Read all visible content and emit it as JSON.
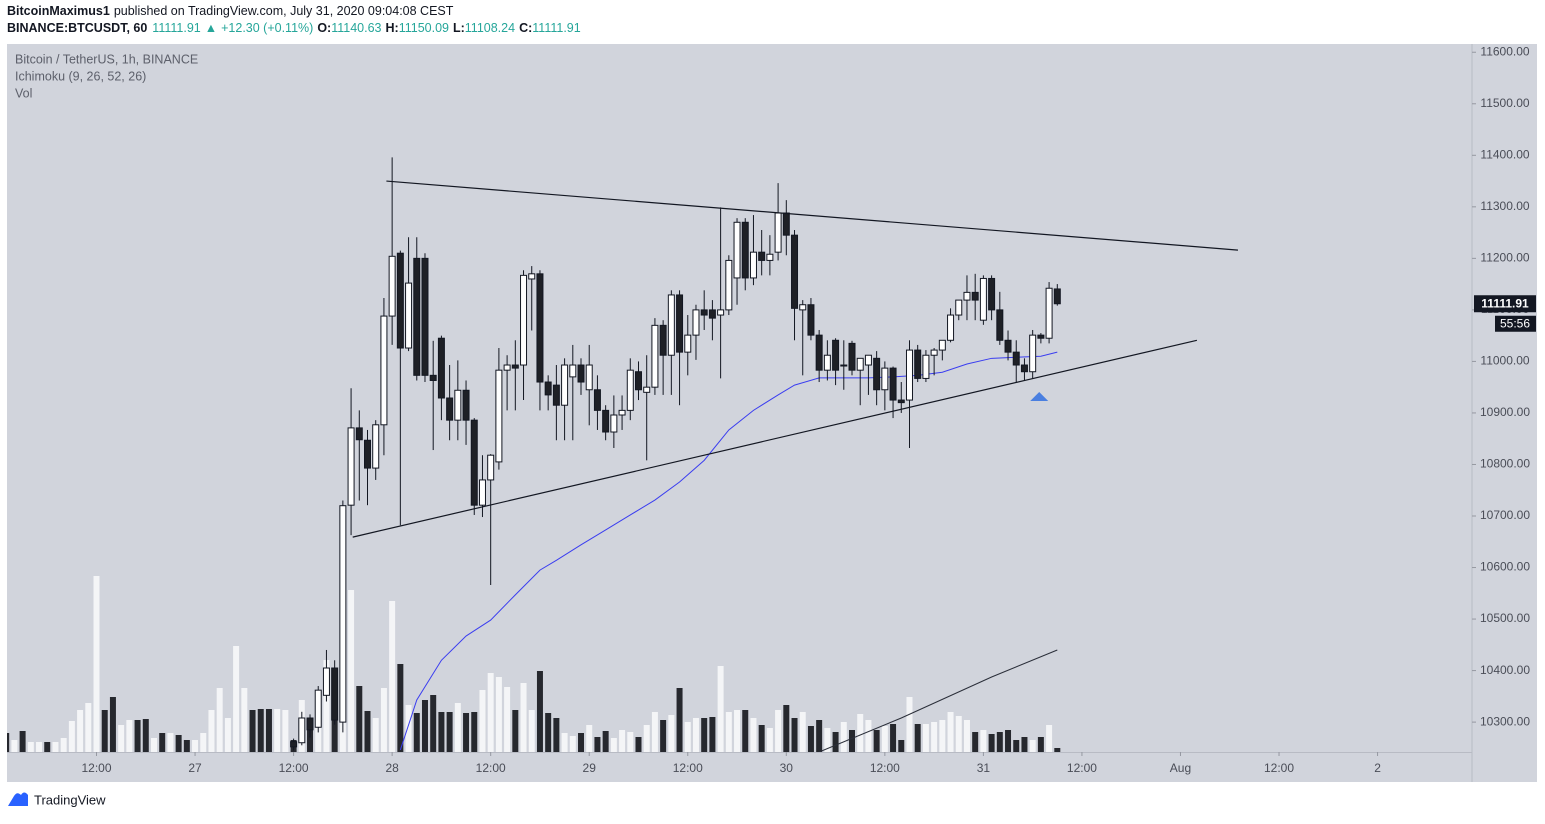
{
  "header": {
    "author": "BitcoinMaximus1",
    "published": "published on TradingView.com, July 31, 2020 09:04:08 CEST",
    "symbol": "BINANCE:BTCUSDT, 60",
    "arrow": "▲",
    "change": "+12.30 (+0.11%)",
    "o": "O:",
    "h": "H:",
    "l": "L:",
    "c": "C:"
  },
  "chart_data": {
    "type": "candlestick",
    "title": "Bitcoin / TetherUS, 1h, BINANCE",
    "indicators": [
      "Ichimoku (9, 26, 52, 26)",
      "Vol"
    ],
    "countdown": "55:56",
    "up_color": "#ffffff",
    "down_color": "#1e2026",
    "open": [
      null,
      null,
      null,
      null,
      null,
      null,
      null,
      null,
      null,
      null,
      null,
      null,
      null,
      null,
      null,
      null,
      null,
      null,
      null,
      null,
      null,
      null,
      null,
      null,
      null,
      null,
      null,
      null,
      null,
      null,
      null,
      null,
      null,
      null,
      null,
      10262,
      10260,
      10308,
      10290,
      10352,
      10405,
      10300,
      10721,
      10871,
      10847,
      10793,
      10877,
      11088,
      11210,
      11026,
      11200,
      11200,
      10973,
      11045,
      10929,
      10886,
      10944,
      10886,
      10721,
      10770,
      10805,
      10983,
      10993,
      10993,
      11160,
      11170,
      10960,
      10954,
      10915,
      10970,
      10993,
      10945,
      10945,
      10905,
      10863,
      10896,
      10905,
      10980,
      10940,
      10950,
      11070,
      11012,
      11129,
      11018,
      11051,
      11100,
      11100,
      11090,
      11100,
      11162,
      11270,
      11162,
      11212,
      11196,
      11212,
      11288,
      11245,
      11100,
      11110,
      11051,
      10983,
      11041,
      10993,
      11035,
      10983,
      10993,
      11006,
      10945,
      10987,
      10925,
      10925,
      11022,
      10967,
      11012,
      11022,
      11041,
      11090,
      11119,
      11134,
      11080,
      11161,
      11100,
      11041,
      11018,
      10993,
      10980,
      11051,
      11045,
      11140.63
    ],
    "high": [
      null,
      null,
      null,
      null,
      null,
      null,
      null,
      null,
      null,
      null,
      null,
      null,
      null,
      null,
      null,
      null,
      null,
      null,
      null,
      null,
      null,
      null,
      null,
      null,
      null,
      null,
      null,
      null,
      null,
      null,
      null,
      null,
      null,
      null,
      null,
      10268,
      10320,
      10315,
      10370,
      10440,
      10420,
      10730,
      10948,
      10905,
      10867,
      10886,
      11123,
      11396,
      11215,
      11241,
      11241,
      11210,
      11040,
      11050,
      10993,
      11002,
      10963,
      10890,
      10818,
      10820,
      11026,
      11012,
      11041,
      11177,
      11185,
      11177,
      10973,
      10993,
      11006,
      11032,
      11006,
      11032,
      10973,
      10915,
      10934,
      10934,
      11006,
      11000,
      11012,
      11084,
      11080,
      11138,
      11138,
      11090,
      11110,
      11138,
      11119,
      11299,
      11206,
      11278,
      11278,
      11284,
      11255,
      11245,
      11346,
      11313,
      11255,
      11119,
      11123,
      11061,
      11041,
      11045,
      11041,
      11040,
      11006,
      11012,
      11020,
      11000,
      10990,
      10960,
      11041,
      11032,
      11022,
      11026,
      11041,
      11103,
      11119,
      11167,
      11170,
      11167,
      11167,
      11135,
      11060,
      11041,
      11006,
      11061,
      11055,
      11154,
      11150.09
    ],
    "low": [
      null,
      null,
      null,
      null,
      null,
      null,
      null,
      null,
      null,
      null,
      null,
      null,
      null,
      null,
      null,
      null,
      null,
      null,
      null,
      null,
      null,
      null,
      null,
      null,
      null,
      null,
      null,
      null,
      null,
      null,
      null,
      null,
      null,
      null,
      null,
      10245,
      10255,
      10270,
      10280,
      10340,
      10295,
      10280,
      10663,
      10730,
      10721,
      10770,
      10818,
      11032,
      10682,
      11020,
      10963,
      10960,
      10828,
      10886,
      10847,
      10847,
      10838,
      10702,
      10698,
      10566,
      10790,
      10905,
      10905,
      10925,
      11060,
      10905,
      10905,
      10847,
      10847,
      10847,
      10935,
      10876,
      10867,
      10847,
      10832,
      10867,
      10886,
      10925,
      10808,
      10935,
      10935,
      10935,
      10915,
      10973,
      11003,
      11061,
      11041,
      10967,
      11090,
      11110,
      11138,
      11148,
      11167,
      11167,
      11196,
      11206,
      11041,
      10973,
      11041,
      10960,
      10963,
      10954,
      10945,
      10973,
      10915,
      10935,
      10915,
      10905,
      10890,
      10900,
      10832,
      10960,
      10960,
      10973,
      11002,
      11037,
      11080,
      11080,
      11080,
      11071,
      11080,
      11032,
      11002,
      10960,
      10963,
      10967,
      11035,
      11035,
      11108.24
    ],
    "close": [
      null,
      null,
      null,
      null,
      null,
      null,
      null,
      null,
      null,
      null,
      null,
      null,
      null,
      null,
      null,
      null,
      null,
      null,
      null,
      null,
      null,
      null,
      null,
      null,
      null,
      null,
      null,
      null,
      null,
      null,
      null,
      null,
      null,
      null,
      null,
      10252,
      10308,
      10285,
      10362,
      10405,
      10304,
      10720,
      10871,
      10848,
      10793,
      10877,
      11088,
      11204,
      11026,
      11152,
      10973,
      10973,
      10963,
      10929,
      10886,
      10944,
      10886,
      10721,
      10770,
      10818,
      10983,
      10993,
      10987,
      11167,
      11170,
      10960,
      10935,
      10915,
      10993,
      10993,
      10960,
      10993,
      10905,
      10863,
      10896,
      10905,
      10983,
      10945,
      10950,
      11070,
      11012,
      11129,
      11018,
      11051,
      11100,
      11090,
      11084,
      11100,
      11196,
      11270,
      11162,
      11212,
      11196,
      11208,
      11288,
      11245,
      11103,
      11110,
      11051,
      10983,
      11012,
      10983,
      10993,
      10983,
      11006,
      11012,
      10945,
      10987,
      10925,
      10920,
      11022,
      10967,
      11012,
      11022,
      11041,
      11090,
      11119,
      11134,
      11119,
      11161,
      11100,
      11041,
      11018,
      10993,
      10980,
      11051,
      11045,
      11142,
      11111.91
    ],
    "volume": {
      "vlim": [
        0,
        200
      ],
      "up_color": "#f4f5f7",
      "down_color": "#26282e",
      "values": [
        19,
        12,
        21,
        10,
        10,
        10,
        10,
        14,
        31,
        42,
        49,
        176,
        42,
        55,
        27,
        32,
        32,
        33,
        14,
        19,
        19,
        17,
        12,
        12,
        19,
        42,
        64,
        34,
        106,
        64,
        42,
        43,
        43,
        43,
        42,
        12,
        52,
        34,
        62,
        92,
        64,
        132,
        162,
        66,
        41,
        34,
        64,
        151,
        88,
        47,
        39,
        52,
        57,
        40,
        40,
        49,
        39,
        40,
        62,
        79,
        75,
        65,
        42,
        69,
        42,
        81,
        39,
        34,
        19,
        16,
        19,
        27,
        15,
        21,
        14,
        22,
        20,
        15,
        27,
        40,
        32,
        37,
        64,
        30,
        34,
        34,
        35,
        86,
        40,
        42,
        42,
        34,
        27,
        24,
        42,
        47,
        34,
        40,
        26,
        32,
        24,
        20,
        30,
        22,
        38,
        32,
        22,
        26,
        28,
        12,
        55,
        28,
        28,
        30,
        32,
        40,
        36,
        32,
        20,
        22,
        18,
        20,
        22,
        12,
        15,
        12,
        15,
        27,
        4
      ],
      "up": [
        false,
        true,
        false,
        true,
        true,
        false,
        true,
        true,
        true,
        true,
        true,
        true,
        false,
        false,
        true,
        true,
        false,
        false,
        true,
        false,
        true,
        false,
        false,
        true,
        true,
        true,
        true,
        true,
        true,
        true,
        false,
        false,
        false,
        true,
        true,
        false,
        true,
        false,
        true,
        true,
        false,
        true,
        true,
        false,
        false,
        true,
        true,
        true,
        false,
        true,
        false,
        false,
        false,
        false,
        false,
        true,
        false,
        false,
        true,
        true,
        true,
        true,
        false,
        true,
        true,
        false,
        false,
        false,
        true,
        true,
        false,
        true,
        false,
        false,
        true,
        true,
        true,
        false,
        true,
        true,
        false,
        true,
        false,
        true,
        true,
        false,
        false,
        true,
        true,
        true,
        false,
        true,
        false,
        true,
        true,
        false,
        false,
        true,
        false,
        false,
        true,
        false,
        true,
        false,
        true,
        true,
        false,
        true,
        false,
        false,
        true,
        false,
        true,
        true,
        true,
        true,
        true,
        true,
        false,
        true,
        false,
        false,
        false,
        false,
        false,
        true,
        false,
        true,
        false
      ]
    },
    "ma": {
      "color": "#3a3df0",
      "x": [
        48,
        50,
        53,
        56,
        59,
        62,
        65,
        67,
        70,
        73,
        76,
        79,
        82,
        85,
        88,
        91,
        94,
        96,
        99,
        102,
        105,
        108,
        111,
        114,
        117,
        120,
        123,
        126,
        128
      ],
      "values": [
        10246,
        10343,
        10420,
        10467,
        10498,
        10547,
        10595,
        10614,
        10644,
        10673,
        10702,
        10731,
        10766,
        10808,
        10867,
        10905,
        10935,
        10954,
        10968,
        10968,
        10968,
        10970,
        10973,
        10979,
        10995,
        11006,
        11008,
        11010,
        11018
      ]
    },
    "volume_ma": {
      "color": "#2a2e39",
      "x": [
        99,
        109,
        120,
        128
      ],
      "values": [
        0,
        34,
        75,
        102
      ]
    },
    "trendlines": [
      {
        "color": "#131722",
        "x": [
          46.3,
          150.0
        ],
        "y": [
          11350,
          11216
        ]
      },
      {
        "color": "#131722",
        "x": [
          42.2,
          145.0
        ],
        "y": [
          10659,
          11041
        ]
      }
    ],
    "marker": {
      "x": 125.8,
      "value": 10931,
      "color": "#4a7fe0"
    },
    "xlim": [
      0.1,
      178.5
    ],
    "xticks": [
      {
        "value": 11,
        "label": "12:00"
      },
      {
        "value": 23,
        "label": "27"
      },
      {
        "value": 35,
        "label": "12:00"
      },
      {
        "value": 47,
        "label": "28"
      },
      {
        "value": 59,
        "label": "12:00"
      },
      {
        "value": 71,
        "label": "29"
      },
      {
        "value": 83,
        "label": "12:00"
      },
      {
        "value": 95,
        "label": "30"
      },
      {
        "value": 107,
        "label": "12:00"
      },
      {
        "value": 119,
        "label": "31"
      },
      {
        "value": 131,
        "label": "12:00"
      },
      {
        "value": 143,
        "label": "Aug"
      },
      {
        "value": 155,
        "label": "12:00"
      },
      {
        "value": 167,
        "label": "2"
      }
    ],
    "ylim": [
      10242,
      11616
    ],
    "yticks": [
      {
        "value": 10300,
        "label": "10300.00"
      },
      {
        "value": 10400,
        "label": "10400.00"
      },
      {
        "value": 10500,
        "label": "10500.00"
      },
      {
        "value": 10600,
        "label": "10600.00"
      },
      {
        "value": 10700,
        "label": "10700.00"
      },
      {
        "value": 10800,
        "label": "10800.00"
      },
      {
        "value": 10900,
        "label": "10900.00"
      },
      {
        "value": 11000,
        "label": "11000.00"
      },
      {
        "value": 11100,
        "label": "11100.00"
      },
      {
        "value": 11200,
        "label": "11200.00"
      },
      {
        "value": 11300,
        "label": "11300.00"
      },
      {
        "value": 11400,
        "label": "11400.00"
      },
      {
        "value": 11500,
        "label": "11500.00"
      },
      {
        "value": 11600,
        "label": "11600.00"
      }
    ]
  },
  "footer": {
    "brand": "TradingView"
  }
}
